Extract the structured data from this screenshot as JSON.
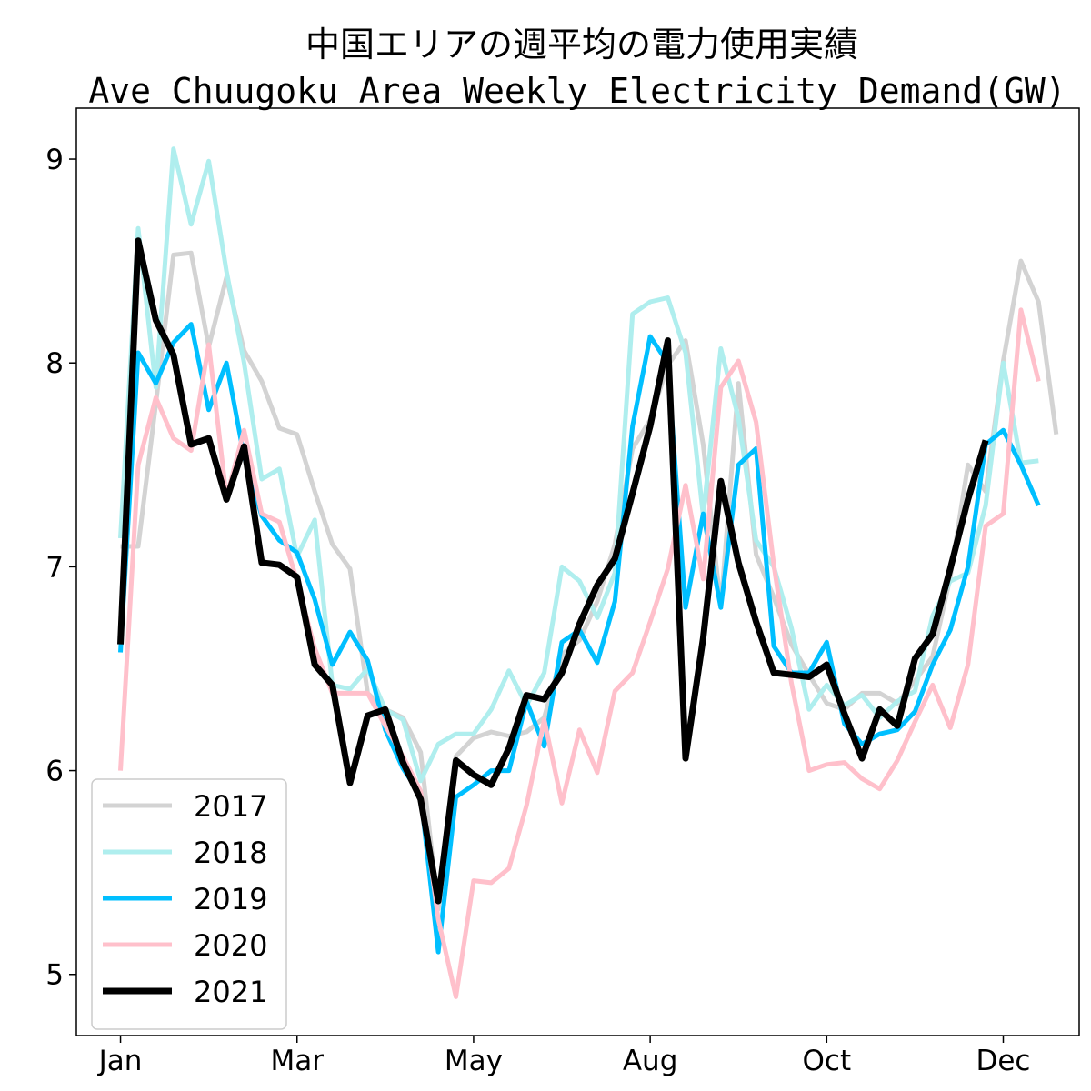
{
  "chart_data": {
    "type": "line",
    "title": "中国エリアの週平均の電力使用実績",
    "subtitle": "Ave Chuugoku Area Weekly Electricity Demand(GW)",
    "xlabel": "",
    "ylabel": "",
    "x_ticks": [
      {
        "label": "Jan",
        "week": 0
      },
      {
        "label": "Mar",
        "week": 10
      },
      {
        "label": "May",
        "week": 20
      },
      {
        "label": "Aug",
        "week": 30
      },
      {
        "label": "Oct",
        "week": 40
      },
      {
        "label": "Dec",
        "week": 50
      }
    ],
    "y_ticks": [
      5,
      6,
      7,
      8,
      9
    ],
    "xlim": [
      -2.5,
      54.3
    ],
    "ylim": [
      4.7,
      9.25
    ],
    "grid": false,
    "legend": "lower-left",
    "series": [
      {
        "name": "2017",
        "color": "#d3d3d3",
        "width": 5,
        "values": [
          7.1,
          7.1,
          7.8,
          8.53,
          8.54,
          8.08,
          8.42,
          8.06,
          7.91,
          7.68,
          7.65,
          7.37,
          7.11,
          6.99,
          6.38,
          6.3,
          6.26,
          6.09,
          5.32,
          6.07,
          6.16,
          6.19,
          6.17,
          6.19,
          6.26,
          6.57,
          6.64,
          6.83,
          7.11,
          7.58,
          7.72,
          7.99,
          8.11,
          7.6,
          6.8,
          7.9,
          7.06,
          6.85,
          6.62,
          6.47,
          6.33,
          6.3,
          6.38,
          6.38,
          6.33,
          6.44,
          6.56,
          6.95,
          7.5,
          7.37,
          8.01,
          8.5,
          8.3,
          7.65
        ]
      },
      {
        "name": "2018",
        "color": "#afeeee",
        "width": 5,
        "values": [
          7.14,
          8.66,
          7.88,
          9.05,
          8.68,
          8.99,
          8.45,
          8.0,
          7.43,
          7.48,
          7.05,
          7.23,
          6.42,
          6.4,
          6.5,
          6.3,
          6.25,
          5.95,
          6.13,
          6.18,
          6.18,
          6.3,
          6.49,
          6.32,
          6.48,
          7.0,
          6.93,
          6.75,
          6.97,
          8.24,
          8.3,
          8.32,
          8.05,
          7.25,
          8.07,
          7.73,
          7.13,
          7.0,
          6.7,
          6.3,
          6.42,
          6.32,
          6.37,
          6.26,
          6.34,
          6.39,
          6.76,
          6.93,
          6.97,
          7.3,
          8.0,
          7.51,
          7.52
        ]
      },
      {
        "name": "2019",
        "color": "#00bfff",
        "width": 5,
        "values": [
          6.58,
          8.05,
          7.9,
          8.1,
          8.19,
          7.77,
          8.0,
          7.54,
          7.25,
          7.13,
          7.07,
          6.84,
          6.52,
          6.68,
          6.54,
          6.2,
          6.01,
          5.88,
          5.11,
          5.87,
          5.93,
          6.0,
          6.0,
          6.34,
          6.12,
          6.63,
          6.69,
          6.53,
          6.83,
          7.69,
          8.13,
          8.0,
          6.8,
          7.26,
          6.8,
          7.5,
          7.58,
          6.61,
          6.48,
          6.48,
          6.63,
          6.23,
          6.13,
          6.18,
          6.2,
          6.29,
          6.52,
          6.69,
          7.0,
          7.6,
          7.67,
          7.5,
          7.3
        ]
      },
      {
        "name": "2020",
        "color": "#ffc0cb",
        "width": 5,
        "values": [
          6.0,
          7.5,
          7.83,
          7.63,
          7.57,
          8.09,
          7.34,
          7.67,
          7.26,
          7.22,
          6.93,
          6.6,
          6.38,
          6.38,
          6.38,
          6.22,
          6.07,
          5.9,
          5.27,
          4.89,
          5.46,
          5.45,
          5.52,
          5.83,
          6.25,
          5.84,
          6.2,
          5.99,
          6.39,
          6.48,
          6.73,
          6.99,
          7.4,
          6.94,
          7.88,
          8.01,
          7.71,
          7.01,
          6.43,
          6.0,
          6.03,
          6.04,
          5.96,
          5.91,
          6.05,
          6.24,
          6.42,
          6.21,
          6.52,
          7.2,
          7.26,
          8.26,
          7.91
        ]
      },
      {
        "name": "2021",
        "color": "#000000",
        "width": 7,
        "values": [
          6.62,
          8.6,
          8.21,
          8.04,
          7.6,
          7.63,
          7.33,
          7.59,
          7.02,
          7.01,
          6.95,
          6.52,
          6.42,
          5.94,
          6.27,
          6.3,
          6.04,
          5.86,
          5.36,
          6.05,
          5.98,
          5.93,
          6.11,
          6.37,
          6.35,
          6.48,
          6.72,
          6.91,
          7.04,
          7.36,
          7.69,
          8.11,
          6.06,
          6.65,
          7.42,
          7.02,
          6.73,
          6.48,
          6.47,
          6.46,
          6.52,
          6.28,
          6.06,
          6.3,
          6.22,
          6.55,
          6.67,
          6.99,
          7.33,
          7.62
        ]
      }
    ]
  }
}
